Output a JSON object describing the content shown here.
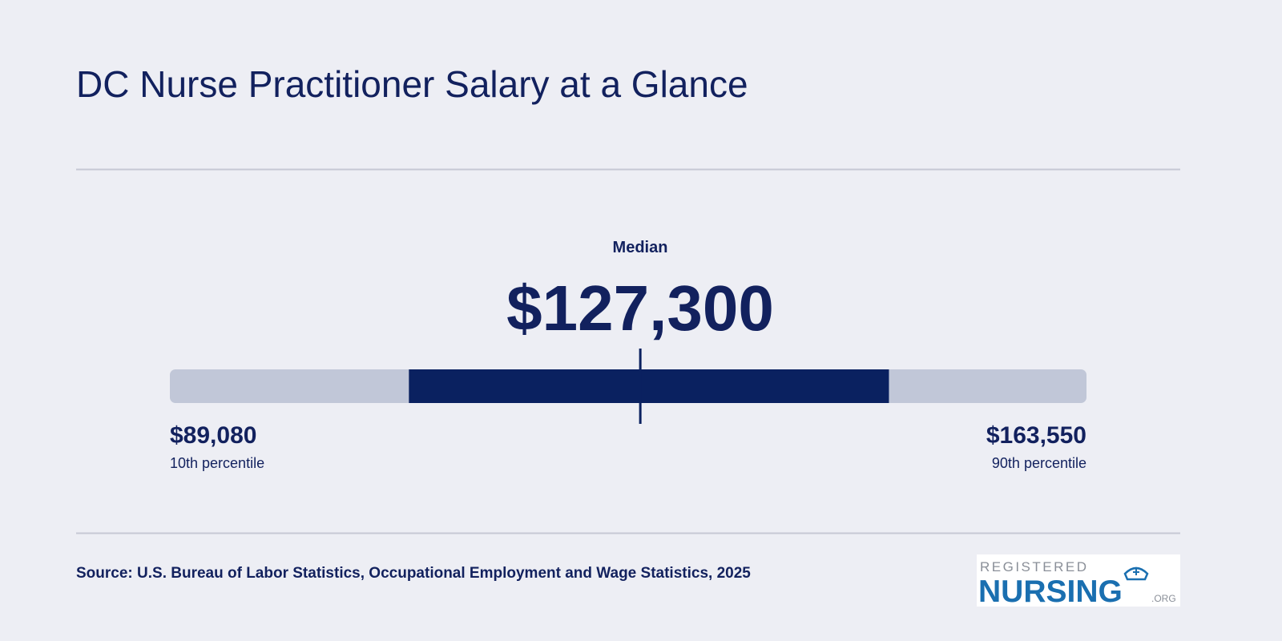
{
  "chart_data": {
    "type": "range",
    "title": "DC Nurse Practitioner Salary at a Glance",
    "median_label": "Median",
    "median": 127300,
    "median_value_label": "$127,300",
    "low": 89080,
    "low_value_label": "$89,080",
    "low_label": "10th percentile",
    "high": 163550,
    "high_value_label": "$163,550",
    "high_label": "90th percentile",
    "band": [
      108500,
      147500
    ],
    "xlim": [
      89080,
      163550
    ],
    "track_color": "#c1c7d8",
    "band_color": "#0a2160",
    "marker_color": "#0a2160"
  },
  "footer": {
    "source": "Source: U.S. Bureau of Labor Statistics, Occupational Employment and Wage Statistics, 2025",
    "logo_top": "REGISTERED",
    "logo_main": "NURSING",
    "logo_suffix": ".ORG"
  }
}
